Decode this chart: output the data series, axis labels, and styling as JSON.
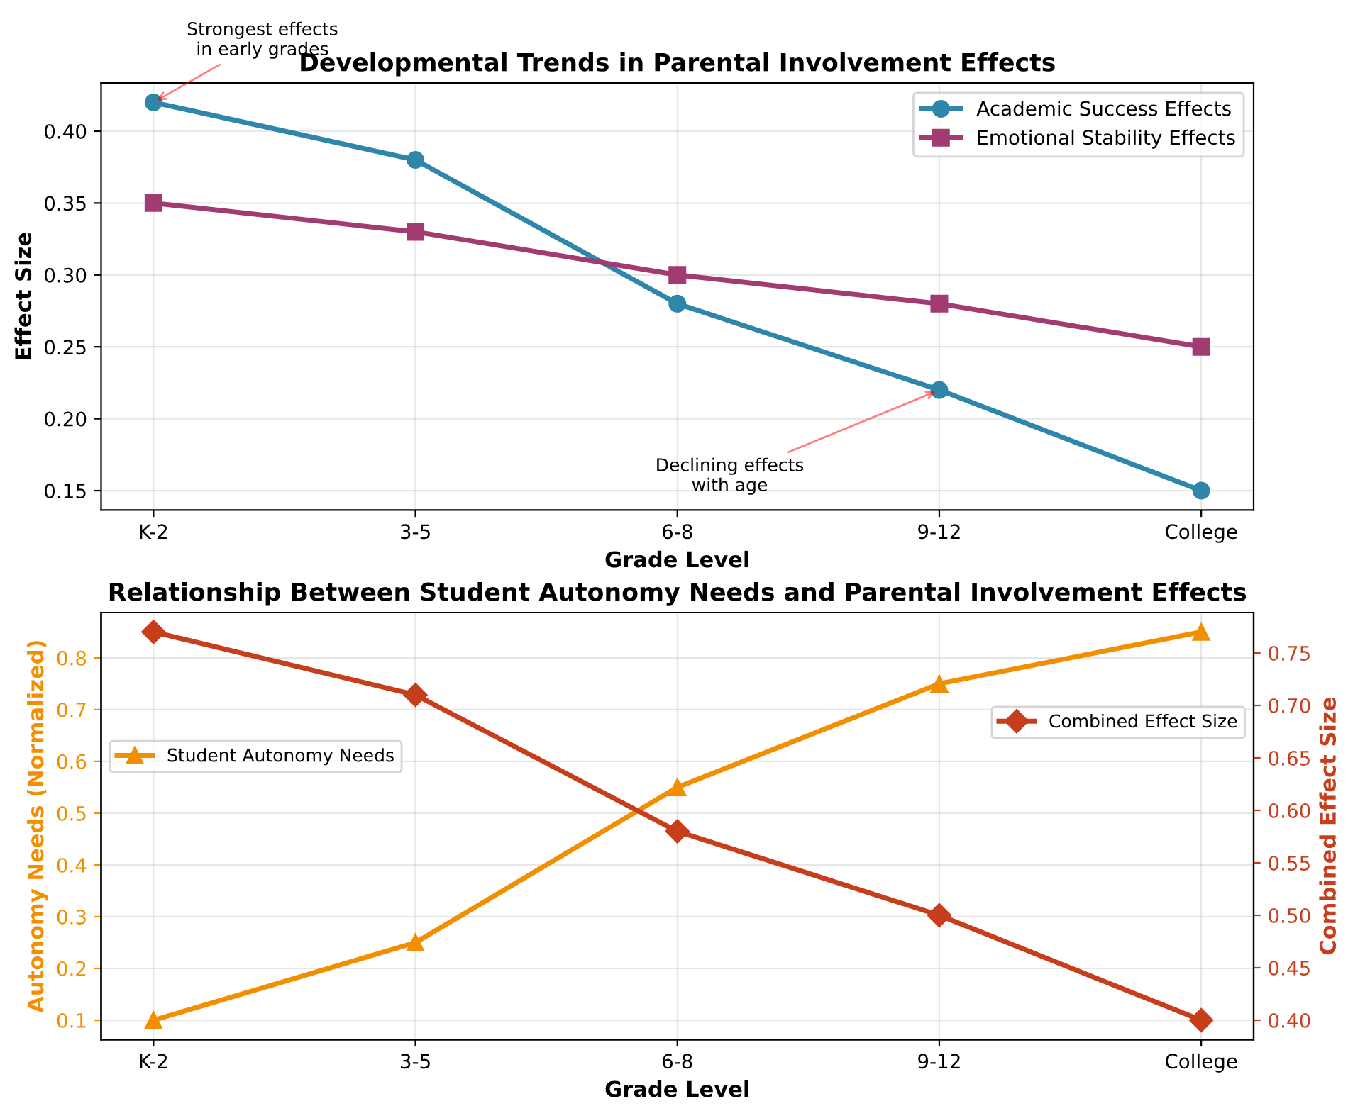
{
  "chart_data": [
    {
      "type": "line",
      "title": "Developmental Trends in Parental Involvement Effects",
      "xlabel": "Grade Level",
      "ylabel": "Effect Size",
      "categories": [
        "K-2",
        "3-5",
        "6-8",
        "9-12",
        "College"
      ],
      "series": [
        {
          "name": "Academic Success Effects",
          "color": "#2e86ab",
          "marker": "circle",
          "values": [
            0.42,
            0.38,
            0.28,
            0.22,
            0.15
          ]
        },
        {
          "name": "Emotional Stability Effects",
          "color": "#a23b72",
          "marker": "square",
          "values": [
            0.35,
            0.33,
            0.3,
            0.28,
            0.25
          ]
        }
      ],
      "ylim": [
        0.1365,
        0.4335
      ],
      "yticks": [
        {
          "value": 0.15,
          "label": "0.15"
        },
        {
          "value": 0.2,
          "label": "0.20"
        },
        {
          "value": 0.25,
          "label": "0.25"
        },
        {
          "value": 0.3,
          "label": "0.30"
        },
        {
          "value": 0.35,
          "label": "0.35"
        },
        {
          "value": 0.4,
          "label": "0.40"
        }
      ],
      "annotations": [
        {
          "text": "Strongest effects\nin early grades",
          "x": "K-2",
          "y": 0.42
        },
        {
          "text": "Declining effects\nwith age",
          "x": "9-12",
          "y": 0.22
        }
      ],
      "grid": true,
      "legend": "top right",
      "line_style": "solid"
    },
    {
      "type": "line",
      "title": "Relationship Between Student Autonomy Needs and Parental Involvement Effects",
      "xlabel": "Grade Level",
      "ylabel": "Autonomy Needs (Normalized)",
      "y2label": "Combined Effect Size",
      "categories": [
        "K-2",
        "3-5",
        "6-8",
        "9-12",
        "College"
      ],
      "series": [
        {
          "name": "Student Autonomy Needs",
          "color": "#f18f01",
          "marker": "triangle",
          "values": [
            0.1,
            0.25,
            0.55,
            0.75,
            0.85
          ]
        },
        {
          "name": "Combined Effect Size",
          "color": "#c73e1d",
          "marker": "diamond",
          "axis": "y2",
          "values": [
            0.77,
            0.71,
            0.58,
            0.5,
            0.4
          ]
        }
      ],
      "ylim": [
        0.0625,
        0.8875
      ],
      "yticks": [
        0.1,
        0.2,
        0.3,
        0.4,
        0.5,
        0.6,
        0.7,
        0.8
      ],
      "y2lim": [
        0.3815,
        0.7885
      ],
      "y2ticks": [
        {
          "value": 0.4,
          "label": "0.40"
        },
        {
          "value": 0.45,
          "label": "0.45"
        },
        {
          "value": 0.5,
          "label": "0.50"
        },
        {
          "value": 0.55,
          "label": "0.55"
        },
        {
          "value": 0.6,
          "label": "0.60"
        },
        {
          "value": 0.65,
          "label": "0.65"
        },
        {
          "value": 0.7,
          "label": "0.70"
        },
        {
          "value": 0.75,
          "label": "0.75"
        }
      ],
      "grid": true,
      "legend": "top left",
      "line_style": "solid"
    }
  ]
}
